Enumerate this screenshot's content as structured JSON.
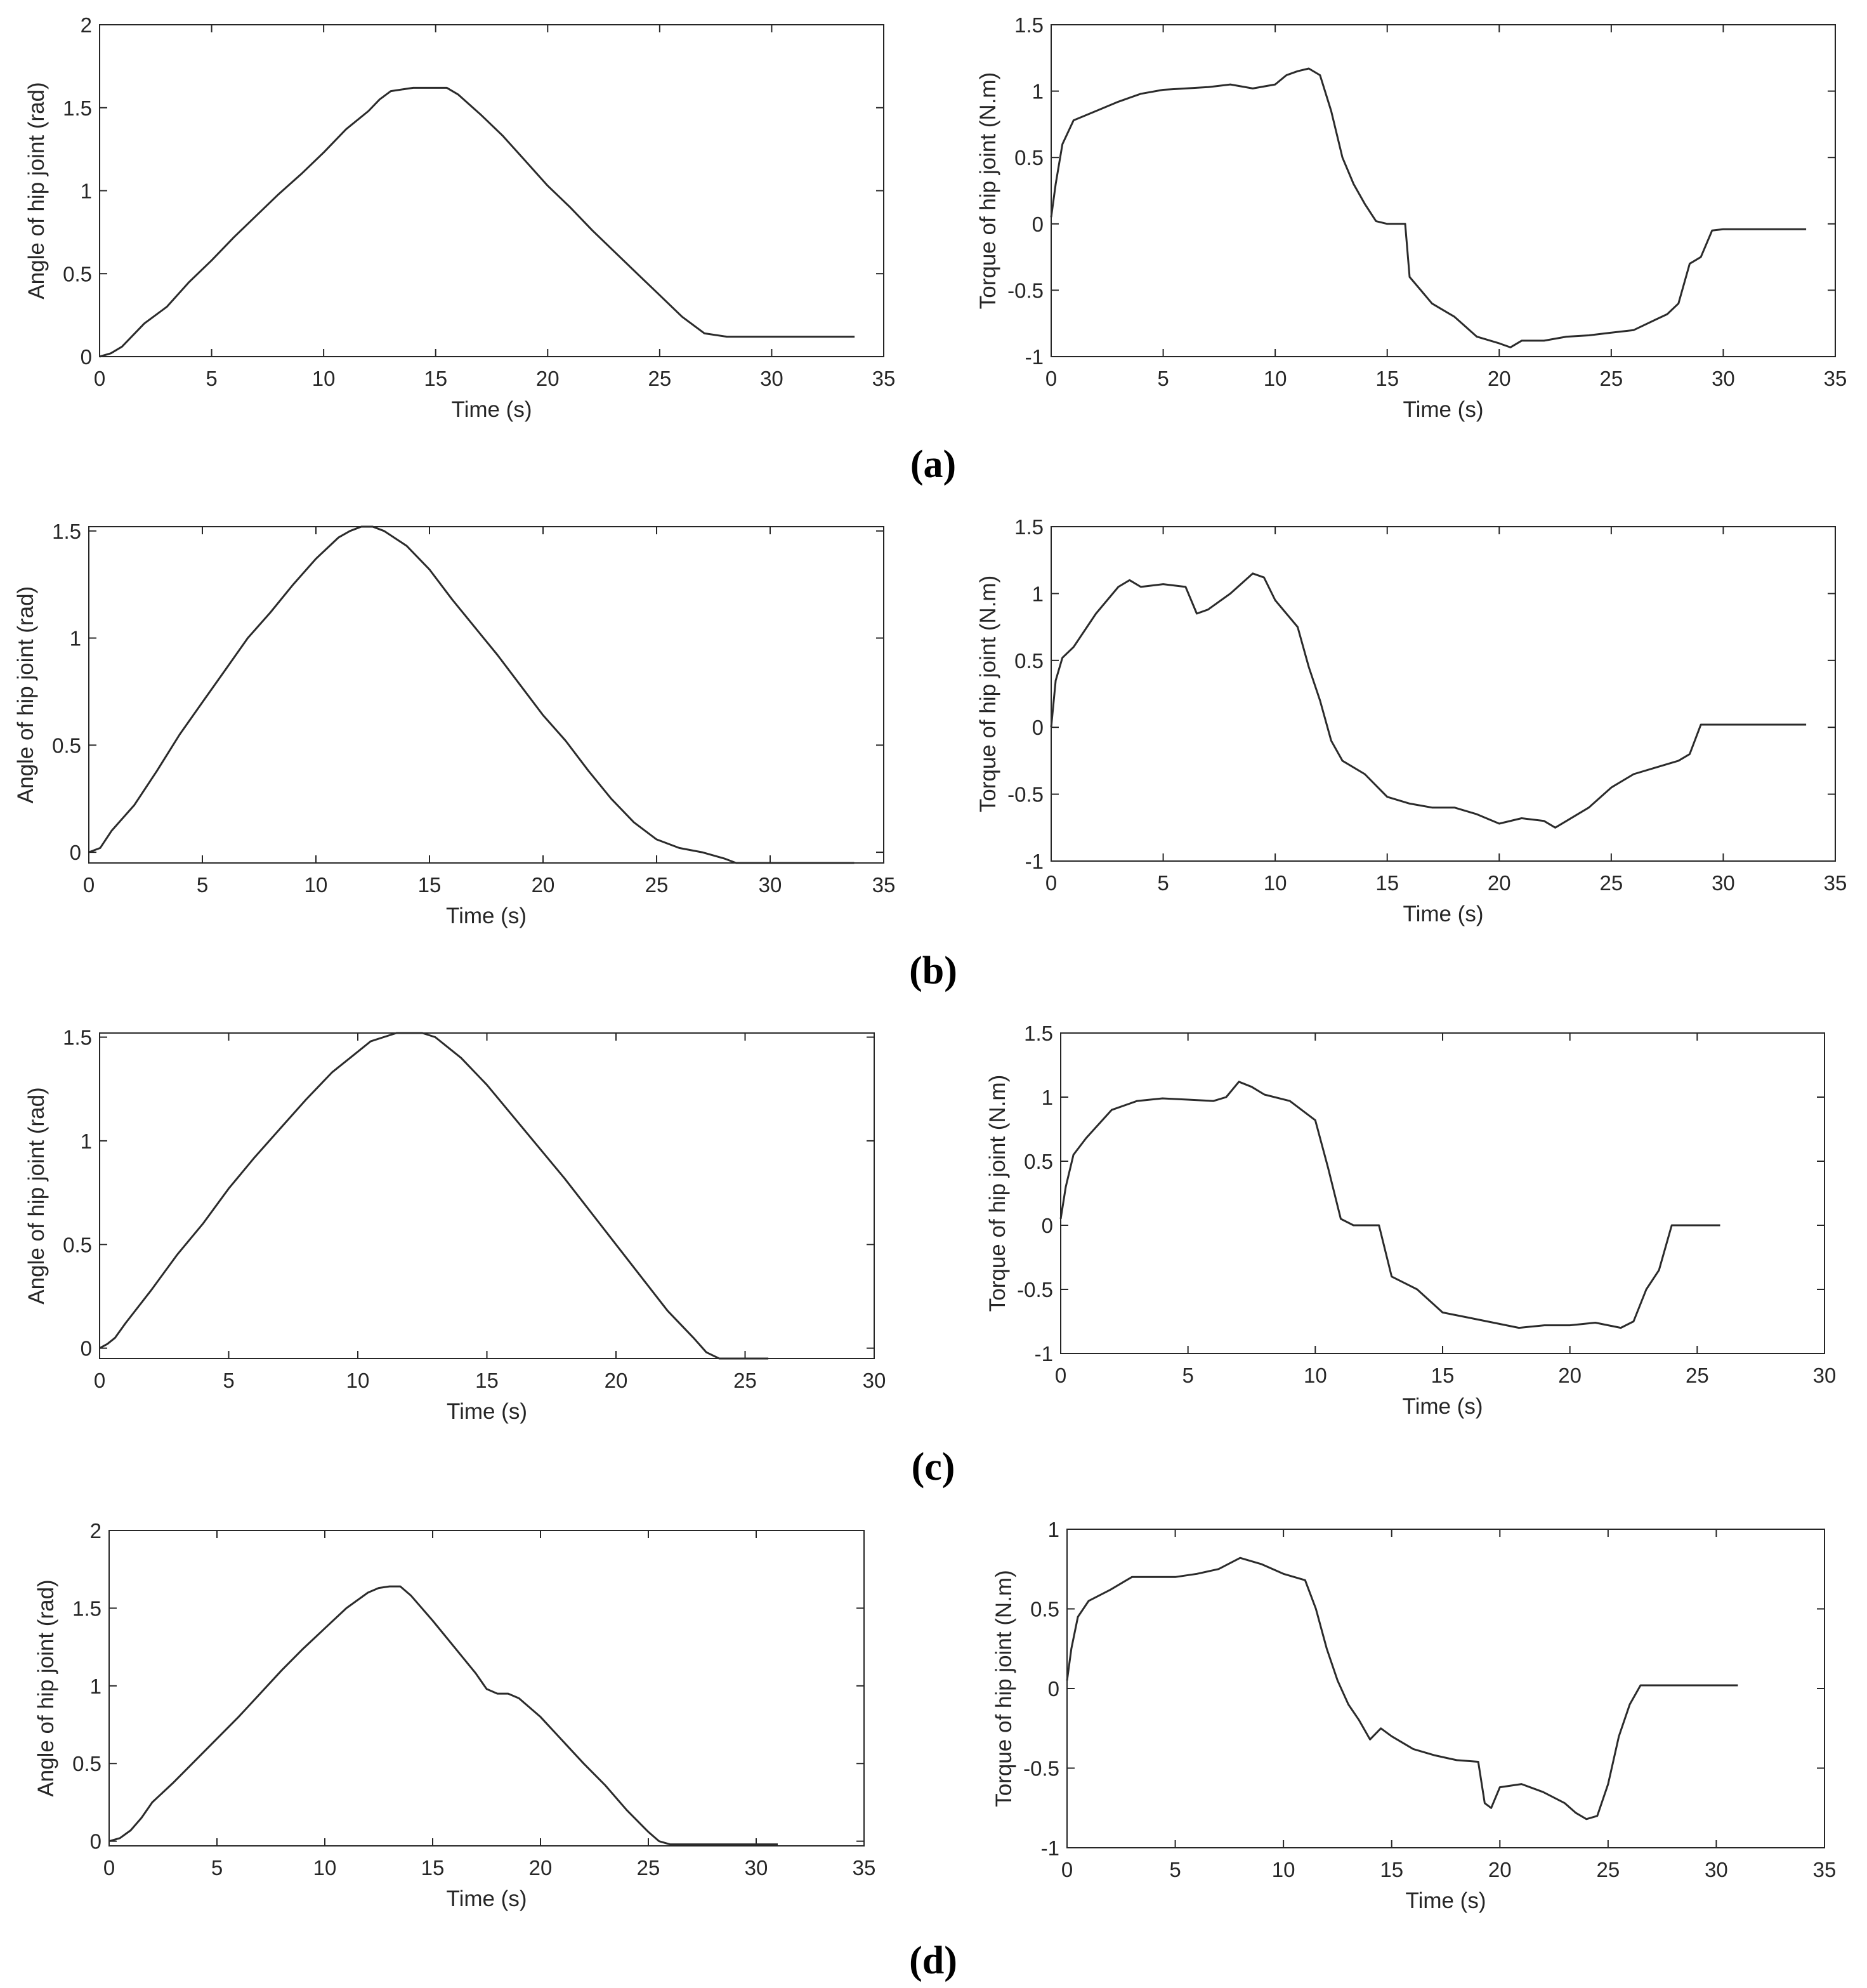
{
  "figure": {
    "panel_labels": [
      "(a)",
      "(b)",
      "(c)",
      "(d)"
    ]
  },
  "colors": {
    "line": "#2b2b2b",
    "axis": "#262626",
    "background": "#ffffff"
  },
  "chart_data": [
    {
      "id": "a-angle",
      "type": "line",
      "xlabel": "Time (s)",
      "ylabel": "Angle of hip joint (rad)",
      "xlim": [
        0,
        35
      ],
      "ylim": [
        0,
        2
      ],
      "xticks": [
        0,
        5,
        10,
        15,
        20,
        25,
        30,
        35
      ],
      "yticks": [
        0,
        0.5,
        1,
        1.5,
        2
      ],
      "ytick_labels": [
        "0",
        "0.5",
        "1",
        "1.5",
        "2"
      ],
      "series": [
        {
          "name": "angle",
          "x": [
            0,
            0.5,
            1,
            2,
            3,
            4,
            5,
            6,
            7,
            8,
            9,
            10,
            11,
            12,
            12.5,
            13,
            14,
            15,
            15.5,
            16,
            17,
            18,
            19,
            20,
            21,
            22,
            23,
            24,
            25,
            26,
            27,
            28,
            29,
            30,
            33.7
          ],
          "y": [
            0,
            0.02,
            0.06,
            0.2,
            0.3,
            0.45,
            0.58,
            0.72,
            0.85,
            0.98,
            1.1,
            1.23,
            1.37,
            1.48,
            1.55,
            1.6,
            1.62,
            1.62,
            1.62,
            1.58,
            1.46,
            1.33,
            1.18,
            1.03,
            0.9,
            0.76,
            0.63,
            0.5,
            0.37,
            0.24,
            0.14,
            0.12,
            0.12,
            0.12,
            0.12
          ]
        }
      ]
    },
    {
      "id": "a-torque",
      "type": "line",
      "xlabel": "Time (s)",
      "ylabel": "Torque of hip joint (N.m)",
      "xlim": [
        0,
        35
      ],
      "ylim": [
        -1,
        1.5
      ],
      "xticks": [
        0,
        5,
        10,
        15,
        20,
        25,
        30,
        35
      ],
      "yticks": [
        -1,
        -0.5,
        0,
        0.5,
        1,
        1.5
      ],
      "ytick_labels": [
        "-1",
        "-0.5",
        "0",
        "0.5",
        "1",
        "1.5"
      ],
      "series": [
        {
          "name": "torque",
          "x": [
            0,
            0.2,
            0.5,
            1,
            2,
            3,
            4,
            5,
            6,
            7,
            8,
            9,
            10,
            10.5,
            11,
            11.5,
            12,
            12.5,
            13,
            13.5,
            14,
            14.5,
            15,
            15.8,
            16,
            16.5,
            17,
            18,
            19,
            20,
            20.5,
            21,
            22,
            23,
            24,
            25,
            26,
            27,
            27.5,
            28,
            28.5,
            29,
            29.5,
            30,
            33.7
          ],
          "y": [
            0.05,
            0.3,
            0.6,
            0.78,
            0.85,
            0.92,
            0.98,
            1.01,
            1.02,
            1.03,
            1.05,
            1.02,
            1.05,
            1.12,
            1.15,
            1.17,
            1.12,
            0.85,
            0.5,
            0.3,
            0.15,
            0.02,
            0.0,
            0.0,
            -0.4,
            -0.5,
            -0.6,
            -0.7,
            -0.85,
            -0.9,
            -0.93,
            -0.88,
            -0.88,
            -0.85,
            -0.84,
            -0.82,
            -0.8,
            -0.72,
            -0.68,
            -0.6,
            -0.3,
            -0.25,
            -0.05,
            -0.04,
            -0.04
          ]
        }
      ]
    },
    {
      "id": "b-angle",
      "type": "line",
      "xlabel": "Time (s)",
      "ylabel": "Angle of hip joint (rad)",
      "xlim": [
        0,
        35
      ],
      "ylim": [
        -0.05,
        1.52
      ],
      "xticks": [
        0,
        5,
        10,
        15,
        20,
        25,
        30,
        35
      ],
      "yticks": [
        0,
        0.5,
        1,
        1.5
      ],
      "ytick_labels": [
        "0",
        "0.5",
        "1",
        "1.5"
      ],
      "series": [
        {
          "name": "angle",
          "x": [
            0,
            0.5,
            1,
            2,
            3,
            4,
            5,
            6,
            7,
            8,
            9,
            10,
            11,
            11.5,
            12,
            12.5,
            13,
            14,
            15,
            16,
            17,
            18,
            19,
            20,
            21,
            22,
            23,
            24,
            25,
            26,
            27,
            28,
            28.5,
            29,
            33.7
          ],
          "y": [
            0,
            0.02,
            0.1,
            0.22,
            0.38,
            0.55,
            0.7,
            0.85,
            1.0,
            1.12,
            1.25,
            1.37,
            1.47,
            1.5,
            1.52,
            1.52,
            1.5,
            1.43,
            1.32,
            1.18,
            1.05,
            0.92,
            0.78,
            0.64,
            0.52,
            0.38,
            0.25,
            0.14,
            0.06,
            0.02,
            0.0,
            -0.03,
            -0.05,
            -0.05,
            -0.05
          ]
        }
      ]
    },
    {
      "id": "b-torque",
      "type": "line",
      "xlabel": "Time (s)",
      "ylabel": "Torque of hip joint (N.m)",
      "xlim": [
        0,
        35
      ],
      "ylim": [
        -1,
        1.5
      ],
      "xticks": [
        0,
        5,
        10,
        15,
        20,
        25,
        30,
        35
      ],
      "yticks": [
        -1,
        -0.5,
        0,
        0.5,
        1,
        1.5
      ],
      "ytick_labels": [
        "-1",
        "-0.5",
        "0",
        "0.5",
        "1",
        "1.5"
      ],
      "series": [
        {
          "name": "torque",
          "x": [
            0,
            0.2,
            0.5,
            1,
            2,
            3,
            3.5,
            4,
            5,
            6,
            6.5,
            7,
            8,
            9,
            9.5,
            10,
            10.5,
            11,
            11.5,
            12,
            12.5,
            13,
            14,
            15,
            16,
            17,
            18,
            19,
            20,
            21,
            22,
            22.5,
            23,
            24,
            25,
            26,
            27,
            28,
            28.5,
            29,
            30,
            33.7
          ],
          "y": [
            0,
            0.35,
            0.52,
            0.6,
            0.85,
            1.05,
            1.1,
            1.05,
            1.07,
            1.05,
            0.85,
            0.88,
            1.0,
            1.15,
            1.12,
            0.95,
            0.85,
            0.75,
            0.45,
            0.2,
            -0.1,
            -0.25,
            -0.35,
            -0.52,
            -0.57,
            -0.6,
            -0.6,
            -0.65,
            -0.72,
            -0.68,
            -0.7,
            -0.75,
            -0.7,
            -0.6,
            -0.45,
            -0.35,
            -0.3,
            -0.25,
            -0.2,
            0.02,
            0.02,
            0.02
          ]
        }
      ]
    },
    {
      "id": "c-angle",
      "type": "line",
      "xlabel": "Time (s)",
      "ylabel": "Angle of hip joint (rad)",
      "xlim": [
        0,
        30
      ],
      "ylim": [
        -0.05,
        1.52
      ],
      "xticks": [
        0,
        5,
        10,
        15,
        20,
        25,
        30
      ],
      "yticks": [
        0,
        0.5,
        1,
        1.5
      ],
      "ytick_labels": [
        "0",
        "0.5",
        "1",
        "1.5"
      ],
      "series": [
        {
          "name": "angle",
          "x": [
            0,
            0.3,
            0.6,
            1,
            2,
            3,
            4,
            5,
            6,
            7,
            8,
            9,
            10,
            10.5,
            11,
            11.5,
            12,
            12.5,
            13,
            14,
            15,
            16,
            17,
            18,
            19,
            20,
            21,
            22,
            23,
            23.5,
            24,
            25.9
          ],
          "y": [
            0,
            0.02,
            0.05,
            0.12,
            0.28,
            0.45,
            0.6,
            0.77,
            0.92,
            1.06,
            1.2,
            1.33,
            1.43,
            1.48,
            1.5,
            1.52,
            1.52,
            1.52,
            1.5,
            1.4,
            1.27,
            1.12,
            0.97,
            0.82,
            0.66,
            0.5,
            0.34,
            0.18,
            0.05,
            -0.02,
            -0.05,
            -0.05
          ]
        }
      ]
    },
    {
      "id": "c-torque",
      "type": "line",
      "xlabel": "Time (s)",
      "ylabel": "Torque of hip joint (N.m)",
      "xlim": [
        0,
        30
      ],
      "ylim": [
        -1,
        1.5
      ],
      "xticks": [
        0,
        5,
        10,
        15,
        20,
        25,
        30
      ],
      "yticks": [
        -1,
        -0.5,
        0,
        0.5,
        1,
        1.5
      ],
      "ytick_labels": [
        "-1",
        "-0.5",
        "0",
        "0.5",
        "1",
        "1.5"
      ],
      "series": [
        {
          "name": "torque",
          "x": [
            0,
            0.2,
            0.5,
            1,
            2,
            3,
            4,
            5,
            6,
            6.5,
            7,
            7.5,
            8,
            9,
            10,
            10.5,
            11,
            11.5,
            12,
            12.5,
            13,
            14,
            15,
            16,
            17,
            18,
            19,
            20,
            21,
            22,
            22.5,
            23,
            23.5,
            24,
            25.9
          ],
          "y": [
            0.05,
            0.3,
            0.55,
            0.68,
            0.9,
            0.97,
            0.99,
            0.98,
            0.97,
            1.0,
            1.12,
            1.08,
            1.02,
            0.97,
            0.82,
            0.45,
            0.05,
            0.0,
            0.0,
            0.0,
            -0.4,
            -0.5,
            -0.68,
            -0.72,
            -0.76,
            -0.8,
            -0.78,
            -0.78,
            -0.76,
            -0.8,
            -0.75,
            -0.5,
            -0.35,
            0.0,
            0.0
          ]
        }
      ]
    },
    {
      "id": "d-angle",
      "type": "line",
      "xlabel": "Time (s)",
      "ylabel": "Angle of hip joint (rad)",
      "xlim": [
        0,
        35
      ],
      "ylim": [
        -0.03,
        2
      ],
      "xticks": [
        0,
        5,
        10,
        15,
        20,
        25,
        30,
        35
      ],
      "yticks": [
        0,
        0.5,
        1,
        1.5,
        2
      ],
      "ytick_labels": [
        "0",
        "0.5",
        "1",
        "1.5",
        "2"
      ],
      "series": [
        {
          "name": "angle",
          "x": [
            0,
            0.5,
            1,
            1.5,
            2,
            3,
            4,
            5,
            6,
            7,
            8,
            9,
            10,
            11,
            12,
            12.5,
            13,
            13.5,
            14,
            15,
            16,
            17,
            17.5,
            18,
            18.5,
            19,
            20,
            21,
            22,
            23,
            24,
            25,
            25.5,
            26,
            31
          ],
          "y": [
            0,
            0.02,
            0.07,
            0.15,
            0.25,
            0.38,
            0.52,
            0.66,
            0.8,
            0.95,
            1.1,
            1.24,
            1.37,
            1.5,
            1.6,
            1.63,
            1.64,
            1.64,
            1.58,
            1.42,
            1.25,
            1.08,
            0.98,
            0.95,
            0.95,
            0.92,
            0.8,
            0.65,
            0.5,
            0.36,
            0.2,
            0.06,
            0.0,
            -0.02,
            -0.02
          ]
        }
      ]
    },
    {
      "id": "d-torque",
      "type": "line",
      "xlabel": "Time (s)",
      "ylabel": "Torque of hip joint (N.m)",
      "xlim": [
        0,
        35
      ],
      "ylim": [
        -1,
        1
      ],
      "xticks": [
        0,
        5,
        10,
        15,
        20,
        25,
        30,
        35
      ],
      "yticks": [
        -1,
        -0.5,
        0,
        0.5,
        1
      ],
      "ytick_labels": [
        "-1",
        "-0.5",
        "0",
        "0.5",
        "1"
      ],
      "series": [
        {
          "name": "torque",
          "x": [
            0,
            0.2,
            0.5,
            1,
            2,
            3,
            4,
            5,
            6,
            7,
            8,
            9,
            10,
            11,
            11.5,
            12,
            12.5,
            13,
            13.5,
            14,
            14.5,
            15,
            16,
            17,
            18,
            19,
            19.3,
            19.6,
            20,
            21,
            22,
            23,
            23.5,
            24,
            24.5,
            25,
            25.5,
            26,
            26.5,
            27,
            31
          ],
          "y": [
            0.05,
            0.25,
            0.45,
            0.55,
            0.62,
            0.7,
            0.7,
            0.7,
            0.72,
            0.75,
            0.82,
            0.78,
            0.72,
            0.68,
            0.5,
            0.25,
            0.05,
            -0.1,
            -0.2,
            -0.32,
            -0.25,
            -0.3,
            -0.38,
            -0.42,
            -0.45,
            -0.46,
            -0.72,
            -0.75,
            -0.62,
            -0.6,
            -0.65,
            -0.72,
            -0.78,
            -0.82,
            -0.8,
            -0.6,
            -0.3,
            -0.1,
            0.02,
            0.02,
            0.02
          ]
        }
      ]
    }
  ]
}
